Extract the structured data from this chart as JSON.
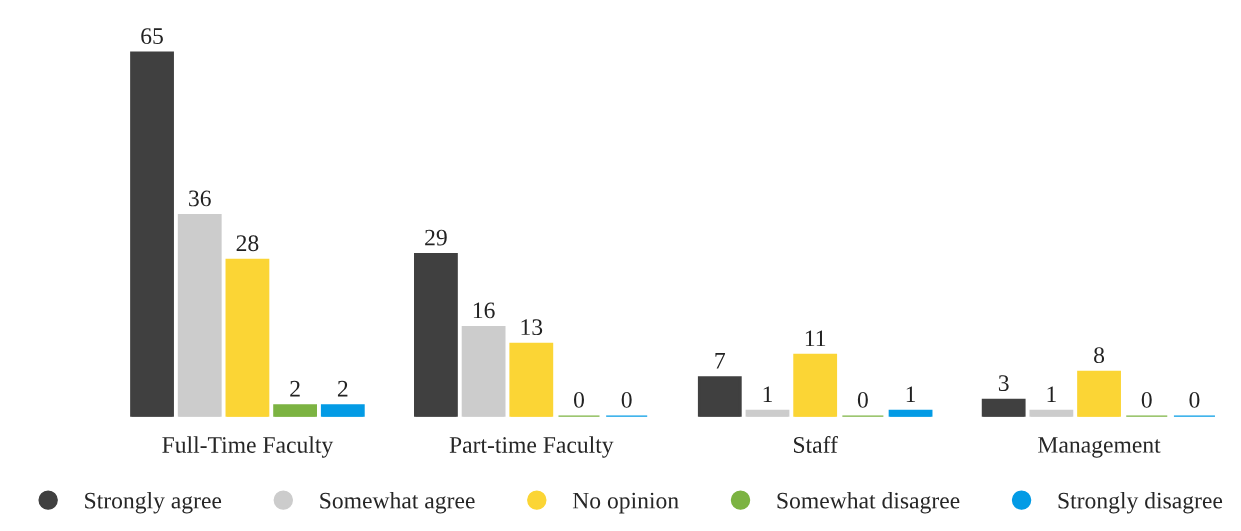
{
  "chart_data": {
    "type": "bar",
    "categories": [
      "Full-Time Faculty",
      "Part-time Faculty",
      "Staff",
      "Management"
    ],
    "series": [
      {
        "name": "Strongly agree",
        "color": "#404040",
        "values": [
          65,
          29,
          7,
          3
        ]
      },
      {
        "name": "Somewhat agree",
        "color": "#cccccc",
        "values": [
          36,
          16,
          1,
          1
        ]
      },
      {
        "name": "No opinion",
        "color": "#fbd535",
        "values": [
          28,
          13,
          11,
          8
        ]
      },
      {
        "name": "Somewhat disagree",
        "color": "#7cb342",
        "values": [
          2,
          0,
          0,
          0
        ]
      },
      {
        "name": "Strongly disagree",
        "color": "#039be5",
        "values": [
          2,
          0,
          1,
          0
        ]
      }
    ],
    "data_labels": true,
    "legend": "bottom",
    "tick_labels": "x"
  }
}
